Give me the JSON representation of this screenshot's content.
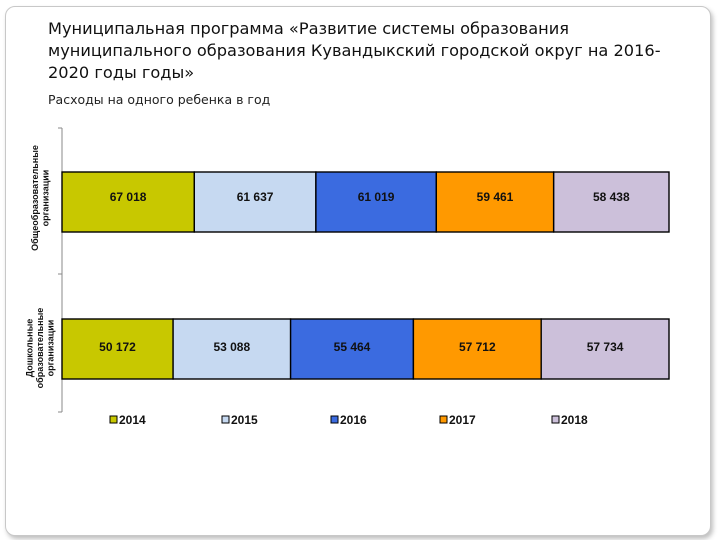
{
  "slide": {
    "title": "Муниципальная программа «Развитие системы образования муниципального образования Кувандыкский городской округ на 2016-2020 годы годы»",
    "subtitle": "Расходы на одного ребенка в год"
  },
  "chart_data": {
    "type": "bar",
    "stacked": true,
    "orientation": "horizontal",
    "title": "",
    "categories": [
      [
        "Общеобразовательные",
        "организации"
      ],
      [
        "Дошкольные",
        "образовательные",
        "организации"
      ]
    ],
    "series": [
      {
        "name": "2014",
        "values": [
          67018,
          50172
        ],
        "labels": [
          "67 018",
          "50 172"
        ],
        "color": "#c8c800"
      },
      {
        "name": "2015",
        "values": [
          61637,
          53088
        ],
        "labels": [
          "61 637",
          "53 088"
        ],
        "color": "#c6d9f1"
      },
      {
        "name": "2016",
        "values": [
          61019,
          55464
        ],
        "labels": [
          "61 019",
          "55 464"
        ],
        "color": "#3b6be0"
      },
      {
        "name": "2017",
        "values": [
          59461,
          57712
        ],
        "labels": [
          "59 461",
          "57 712"
        ],
        "color": "#ff9900"
      },
      {
        "name": "2018",
        "values": [
          58438,
          57734
        ],
        "labels": [
          "58 438",
          "57 734"
        ],
        "color": "#ccc0da"
      }
    ],
    "legend_position": "bottom",
    "grid": false
  }
}
